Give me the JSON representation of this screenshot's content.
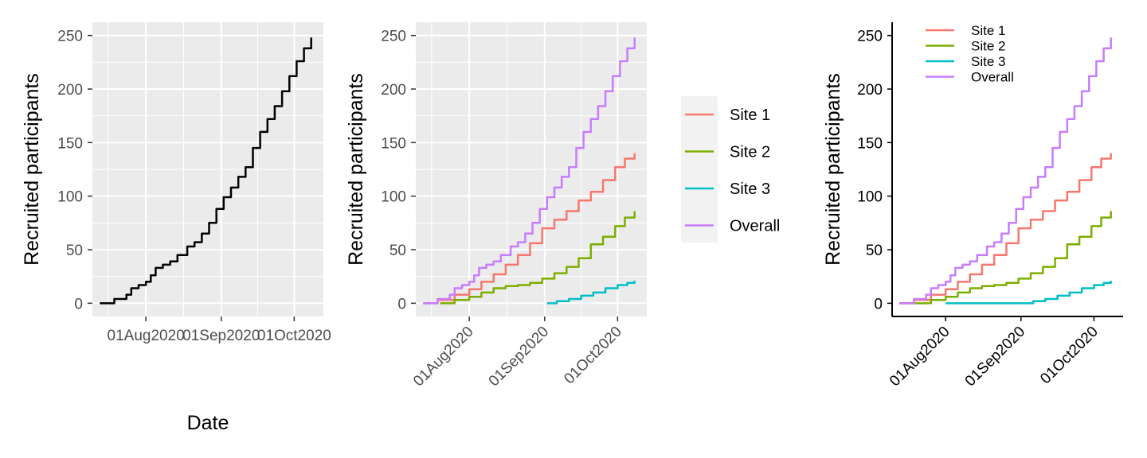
{
  "chart_data": [
    {
      "type": "line",
      "xlabel": "Date",
      "ylabel": "Recruited participants",
      "xticks": [
        "01Aug2020",
        "01Sep2020",
        "01Oct2020"
      ],
      "yticks": [
        "0",
        "50",
        "100",
        "150",
        "200",
        "250"
      ],
      "ylim": [
        0,
        250
      ],
      "xlim": [
        "2020-07-10",
        "2020-10-13"
      ],
      "grid": true,
      "series": [
        {
          "color": "#000000",
          "x": [
            "2020-07-13",
            "2020-07-19",
            "2020-07-24",
            "2020-07-26",
            "2020-07-29",
            "2020-08-01",
            "2020-08-03",
            "2020-08-05",
            "2020-08-08",
            "2020-08-11",
            "2020-08-14",
            "2020-08-18",
            "2020-08-21",
            "2020-08-24",
            "2020-08-27",
            "2020-08-30",
            "2020-09-02",
            "2020-09-05",
            "2020-09-08",
            "2020-09-11",
            "2020-09-14",
            "2020-09-17",
            "2020-09-20",
            "2020-09-23",
            "2020-09-26",
            "2020-09-29",
            "2020-10-02",
            "2020-10-05",
            "2020-10-08"
          ],
          "values": [
            0,
            4,
            8,
            14,
            17,
            20,
            26,
            33,
            36,
            39,
            45,
            53,
            57,
            65,
            75,
            88,
            99,
            108,
            118,
            127,
            145,
            160,
            172,
            184,
            198,
            212,
            226,
            238,
            248
          ]
        }
      ]
    },
    {
      "type": "line",
      "ylabel": "Recruited participants",
      "xticks": [
        "01Aug2020",
        "01Sep2020",
        "01Oct2020"
      ],
      "yticks": [
        "0",
        "50",
        "100",
        "150",
        "200",
        "250"
      ],
      "ylim": [
        0,
        250
      ],
      "xlim": [
        "2020-07-10",
        "2020-10-13"
      ],
      "grid": true,
      "legend": "right",
      "series": [
        {
          "name": "Site 1",
          "color": "#F8766D",
          "x": [
            "2020-07-13",
            "2020-07-19",
            "2020-07-26",
            "2020-08-01",
            "2020-08-06",
            "2020-08-11",
            "2020-08-16",
            "2020-08-21",
            "2020-08-26",
            "2020-08-31",
            "2020-09-05",
            "2020-09-10",
            "2020-09-15",
            "2020-09-20",
            "2020-09-25",
            "2020-09-30",
            "2020-10-04",
            "2020-10-08"
          ],
          "values": [
            0,
            3,
            8,
            13,
            20,
            27,
            36,
            45,
            56,
            70,
            78,
            86,
            96,
            104,
            115,
            127,
            135,
            140
          ]
        },
        {
          "name": "Site 2",
          "color": "#7CAE00",
          "x": [
            "2020-07-20",
            "2020-07-26",
            "2020-08-01",
            "2020-08-06",
            "2020-08-11",
            "2020-08-16",
            "2020-08-21",
            "2020-08-26",
            "2020-08-31",
            "2020-09-05",
            "2020-09-10",
            "2020-09-15",
            "2020-09-20",
            "2020-09-25",
            "2020-09-30",
            "2020-10-04",
            "2020-10-08"
          ],
          "values": [
            0,
            3,
            6,
            10,
            14,
            16,
            17,
            19,
            23,
            28,
            34,
            42,
            55,
            62,
            72,
            80,
            86
          ]
        },
        {
          "name": "Site 3",
          "color": "#00BFC4",
          "x": [
            "2020-09-02",
            "2020-09-06",
            "2020-09-11",
            "2020-09-16",
            "2020-09-21",
            "2020-09-26",
            "2020-10-01",
            "2020-10-05",
            "2020-10-08"
          ],
          "values": [
            0,
            2,
            4,
            7,
            10,
            14,
            17,
            19,
            21
          ]
        },
        {
          "name": "Overall",
          "color": "#C77CFF",
          "x": [
            "2020-07-13",
            "2020-07-19",
            "2020-07-24",
            "2020-07-26",
            "2020-07-29",
            "2020-08-01",
            "2020-08-03",
            "2020-08-05",
            "2020-08-08",
            "2020-08-11",
            "2020-08-14",
            "2020-08-18",
            "2020-08-21",
            "2020-08-24",
            "2020-08-27",
            "2020-08-30",
            "2020-09-02",
            "2020-09-05",
            "2020-09-08",
            "2020-09-11",
            "2020-09-14",
            "2020-09-17",
            "2020-09-20",
            "2020-09-23",
            "2020-09-26",
            "2020-09-29",
            "2020-10-02",
            "2020-10-05",
            "2020-10-08"
          ],
          "values": [
            0,
            4,
            8,
            14,
            17,
            20,
            26,
            33,
            36,
            39,
            45,
            53,
            57,
            65,
            75,
            88,
            99,
            108,
            118,
            127,
            145,
            160,
            172,
            184,
            198,
            212,
            226,
            238,
            248
          ]
        }
      ]
    },
    {
      "type": "line",
      "ylabel": "Recruited participants",
      "xticks": [
        "01Aug2020",
        "01Sep2020",
        "01Oct2020"
      ],
      "yticks": [
        "0",
        "50",
        "100",
        "150",
        "200",
        "250"
      ],
      "ylim": [
        0,
        250
      ],
      "xlim": [
        "2020-07-10",
        "2020-10-13"
      ],
      "grid": false,
      "legend": "top-left",
      "series": [
        {
          "name": "Site 1",
          "color": "#F8766D",
          "x": [
            "2020-07-13",
            "2020-07-19",
            "2020-07-26",
            "2020-08-01",
            "2020-08-06",
            "2020-08-11",
            "2020-08-16",
            "2020-08-21",
            "2020-08-26",
            "2020-08-31",
            "2020-09-05",
            "2020-09-10",
            "2020-09-15",
            "2020-09-20",
            "2020-09-25",
            "2020-09-30",
            "2020-10-04",
            "2020-10-08"
          ],
          "values": [
            0,
            3,
            8,
            13,
            20,
            27,
            36,
            45,
            56,
            70,
            78,
            86,
            96,
            104,
            115,
            127,
            135,
            140
          ]
        },
        {
          "name": "Site 2",
          "color": "#7CAE00",
          "x": [
            "2020-07-13",
            "2020-07-20",
            "2020-07-26",
            "2020-08-01",
            "2020-08-06",
            "2020-08-11",
            "2020-08-16",
            "2020-08-21",
            "2020-08-26",
            "2020-08-31",
            "2020-09-05",
            "2020-09-10",
            "2020-09-15",
            "2020-09-20",
            "2020-09-25",
            "2020-09-30",
            "2020-10-04",
            "2020-10-08"
          ],
          "values": [
            0,
            0,
            3,
            6,
            10,
            14,
            16,
            17,
            19,
            23,
            28,
            34,
            42,
            55,
            62,
            72,
            80,
            86
          ]
        },
        {
          "name": "Site 3",
          "color": "#00BFC4",
          "x": [
            "2020-08-01",
            "2020-09-02",
            "2020-09-06",
            "2020-09-11",
            "2020-09-16",
            "2020-09-21",
            "2020-09-26",
            "2020-10-01",
            "2020-10-05",
            "2020-10-08"
          ],
          "values": [
            0,
            0,
            2,
            4,
            7,
            10,
            14,
            17,
            19,
            21
          ]
        },
        {
          "name": "Overall",
          "color": "#C77CFF",
          "x": [
            "2020-07-13",
            "2020-07-19",
            "2020-07-24",
            "2020-07-26",
            "2020-07-29",
            "2020-08-01",
            "2020-08-03",
            "2020-08-05",
            "2020-08-08",
            "2020-08-11",
            "2020-08-14",
            "2020-08-18",
            "2020-08-21",
            "2020-08-24",
            "2020-08-27",
            "2020-08-30",
            "2020-09-02",
            "2020-09-05",
            "2020-09-08",
            "2020-09-11",
            "2020-09-14",
            "2020-09-17",
            "2020-09-20",
            "2020-09-23",
            "2020-09-26",
            "2020-09-29",
            "2020-10-02",
            "2020-10-05",
            "2020-10-08"
          ],
          "values": [
            0,
            4,
            8,
            14,
            17,
            20,
            26,
            33,
            36,
            39,
            45,
            53,
            57,
            65,
            75,
            88,
            99,
            108,
            118,
            127,
            145,
            160,
            172,
            184,
            198,
            212,
            226,
            238,
            248
          ]
        }
      ]
    }
  ]
}
